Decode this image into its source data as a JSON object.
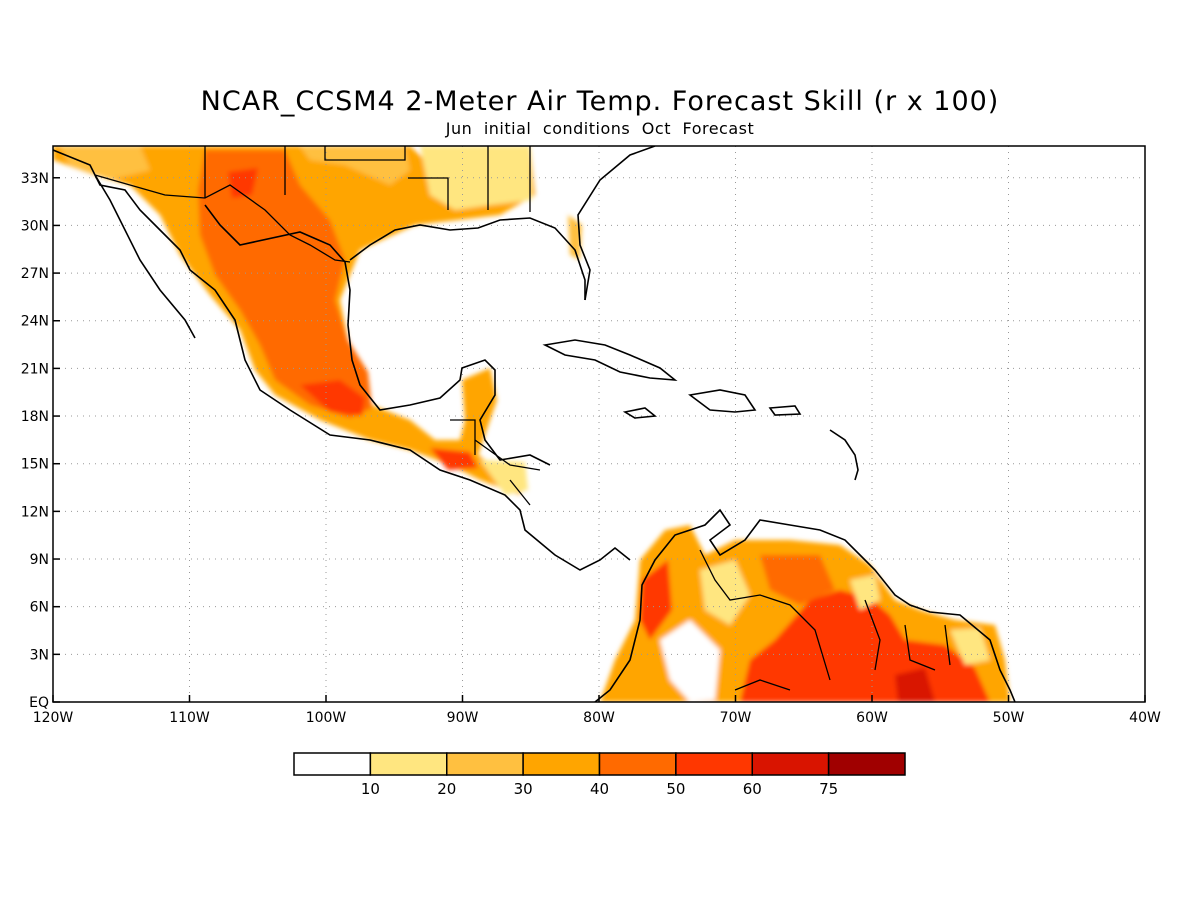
{
  "title": "NCAR_CCSM4 2-Meter Air Temp. Forecast Skill (r x 100)",
  "subtitle": "Jun initial conditions  Oct Forecast",
  "map": {
    "region": "Central America and Caribbean",
    "lon_range": [
      -120,
      -40
    ],
    "lat_range": [
      0,
      35
    ],
    "x_ticks": [
      {
        "lon": -120,
        "label": "120W"
      },
      {
        "lon": -110,
        "label": "110W"
      },
      {
        "lon": -100,
        "label": "100W"
      },
      {
        "lon": -90,
        "label": "90W"
      },
      {
        "lon": -80,
        "label": "80W"
      },
      {
        "lon": -70,
        "label": "70W"
      },
      {
        "lon": -60,
        "label": "60W"
      },
      {
        "lon": -50,
        "label": "50W"
      },
      {
        "lon": -40,
        "label": "40W"
      }
    ],
    "y_ticks": [
      {
        "lat": 0,
        "label": "EQ"
      },
      {
        "lat": 3,
        "label": "3N"
      },
      {
        "lat": 6,
        "label": "6N"
      },
      {
        "lat": 9,
        "label": "9N"
      },
      {
        "lat": 12,
        "label": "12N"
      },
      {
        "lat": 15,
        "label": "15N"
      },
      {
        "lat": 18,
        "label": "18N"
      },
      {
        "lat": 21,
        "label": "21N"
      },
      {
        "lat": 24,
        "label": "24N"
      },
      {
        "lat": 27,
        "label": "27N"
      },
      {
        "lat": 30,
        "label": "30N"
      },
      {
        "lat": 33,
        "label": "33N"
      }
    ],
    "grid": "dotted"
  },
  "colorbar": {
    "colors": [
      "#ffffff",
      "#ffe680",
      "#ffc040",
      "#ffa500",
      "#ff6a00",
      "#ff3700",
      "#d91400",
      "#a00000"
    ],
    "labels": [
      "10",
      "20",
      "30",
      "40",
      "50",
      "60",
      "75"
    ]
  },
  "skill_field": {
    "mexico_us_border": [
      {
        "lon": -117,
        "lat": 32.5,
        "value": 40
      },
      {
        "lon": -106,
        "lat": 31,
        "value": 50
      },
      {
        "lon": -100,
        "lat": 30,
        "value": 40
      },
      {
        "lon": -92,
        "lat": 33,
        "value": 20
      }
    ],
    "mexico": [
      {
        "lon": -108,
        "lat": 27,
        "value": 40
      },
      {
        "lon": -103,
        "lat": 22,
        "value": 50
      },
      {
        "lon": -99,
        "lat": 18.5,
        "value": 60
      }
    ],
    "central_america": [
      {
        "lon": -91,
        "lat": 15,
        "value": 60
      },
      {
        "lon": -89,
        "lat": 19,
        "value": 30
      },
      {
        "lon": -86,
        "lat": 14,
        "value": 20
      }
    ],
    "south_america": [
      {
        "lon": -76,
        "lat": 6,
        "value": 60
      },
      {
        "lon": -73,
        "lat": 3,
        "value": 10
      },
      {
        "lon": -65,
        "lat": 5,
        "value": 50
      },
      {
        "lon": -58,
        "lat": 2,
        "value": 60
      }
    ]
  }
}
